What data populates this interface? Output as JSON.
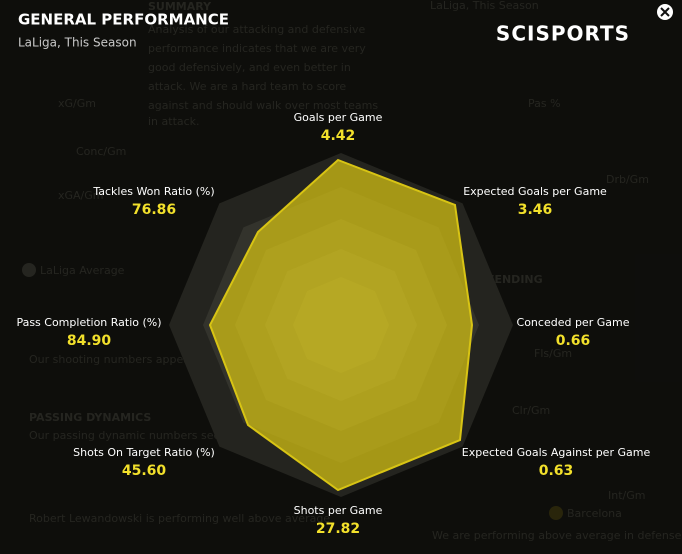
{
  "header": {
    "title": "GENERAL PERFORMANCE",
    "subtitle": "LaLiga, This Season",
    "logo": "SCISPORTS"
  },
  "radar": {
    "axes": [
      {
        "label": "Goals per Game",
        "value": "4.42"
      },
      {
        "label": "Expected Goals per Game",
        "value": "3.46"
      },
      {
        "label": "Conceded per Game",
        "value": "0.66"
      },
      {
        "label": "Expected Goals Against per Game",
        "value": "0.63"
      },
      {
        "label": "Shots per Game",
        "value": "27.82"
      },
      {
        "label": "Shots On Target Ratio (%)",
        "value": "45.60"
      },
      {
        "label": "Pass Completion Ratio (%)",
        "value": "84.90"
      },
      {
        "label": "Tackles Won Ratio (%)",
        "value": "76.86"
      }
    ]
  },
  "background": {
    "texts": [
      "SUMMARY",
      "Analysis of our attacking and defensive",
      "performance indicates that we are very",
      "good defensively, and even better in",
      "attack. We are a hard team to score",
      "against and should walk over most teams",
      "in attack.",
      "LaLiga, This Season",
      "xG/Gm",
      "Conc/Gm",
      "xGA/Gm",
      "Pas %",
      "Drb/Gm",
      "Fls/Gm",
      "Clr/Gm",
      "Int/Gm",
      "LaLiga Average",
      "TEAM DEFENDING",
      "PASSING DYNAMICS",
      "Our shooting numbers appear to be high",
      "Our passing dynamic numbers seem like outliers",
      "Robert Lewandowski is performing well above average",
      "Barcelona",
      "We are performing above average in defense"
    ]
  }
}
